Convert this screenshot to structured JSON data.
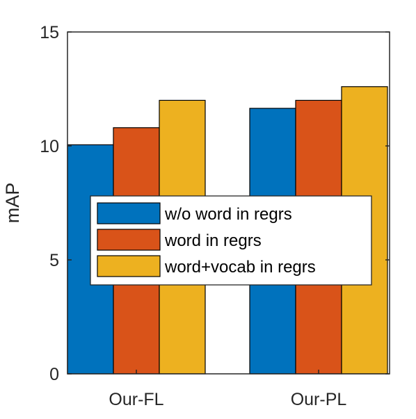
{
  "chart_data": {
    "type": "bar",
    "categories": [
      "Our-FL",
      "Our-PL"
    ],
    "series": [
      {
        "name": "w/o word in regrs",
        "values": [
          10.05,
          11.65
        ],
        "color": "#0072BD"
      },
      {
        "name": "word in regrs",
        "values": [
          10.8,
          12.0
        ],
        "color": "#D95319"
      },
      {
        "name": "word+vocab in regrs",
        "values": [
          12.0,
          12.6
        ],
        "color": "#EDB120"
      }
    ],
    "title": "",
    "xlabel": "",
    "ylabel": "mAP",
    "ylim": [
      0,
      15
    ],
    "yticks": [
      "0",
      "5",
      "10",
      "15"
    ],
    "grid": false,
    "legend_position": "center"
  }
}
